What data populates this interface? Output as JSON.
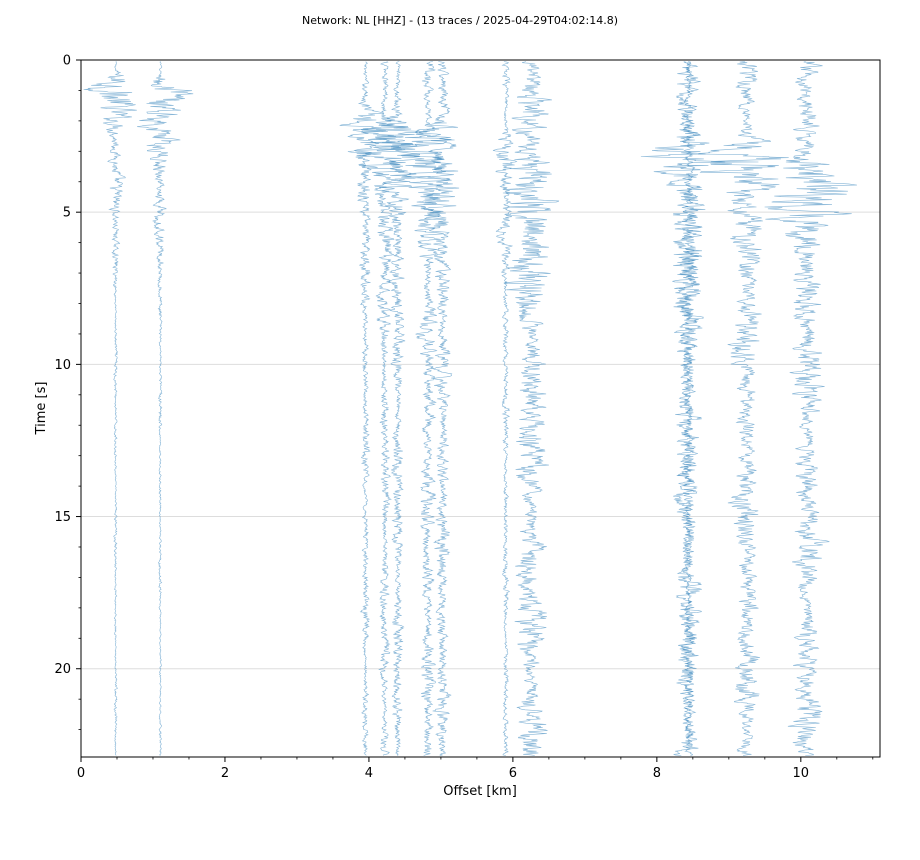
{
  "chart_data": {
    "type": "line",
    "title": "Network: NL [HHZ] - (13 traces / 2025-04-29T04:02:14.8)",
    "xlabel": "Offset [km]",
    "ylabel": "Time [s]",
    "xlim": [
      0,
      11.1
    ],
    "ylim": [
      22.9,
      0
    ],
    "y_inverted": true,
    "x_ticks": [
      0,
      2,
      4,
      6,
      8,
      10
    ],
    "y_ticks": [
      0,
      5,
      10,
      15,
      20
    ],
    "grid": "horizontal",
    "trace_color": "#1f77b4",
    "series": [
      {
        "offset": 0.48,
        "amplitude": 0.02,
        "burst_time": 0.9,
        "burst_amplitude": 0.42
      },
      {
        "offset": 1.1,
        "amplitude": 0.02,
        "burst_time": 1.1,
        "burst_amplitude": 0.52
      },
      {
        "offset": 3.95,
        "amplitude": 0.05,
        "burst_time": 2.0,
        "burst_amplitude": 0.3
      },
      {
        "offset": 4.22,
        "amplitude": 0.07,
        "burst_time": 2.4,
        "burst_amplitude": 0.55
      },
      {
        "offset": 4.4,
        "amplitude": 0.08,
        "burst_time": 2.4,
        "burst_amplitude": 0.5
      },
      {
        "offset": 4.82,
        "amplitude": 0.1,
        "burst_time": 2.6,
        "burst_amplitude": 0.45
      },
      {
        "offset": 5.02,
        "amplitude": 0.1,
        "burst_time": 2.4,
        "burst_amplitude": 0.4
      },
      {
        "offset": 5.9,
        "amplitude": 0.04,
        "burst_time": 2.8,
        "burst_amplitude": 0.2
      },
      {
        "offset": 6.25,
        "amplitude": 0.22,
        "burst_time": 3.4,
        "burst_amplitude": 0.5
      },
      {
        "offset": 8.42,
        "amplitude": 0.18,
        "burst_time": 3.0,
        "burst_amplitude": 0.4
      },
      {
        "offset": 8.45,
        "amplitude": 0.1,
        "burst_time": 5.0,
        "burst_amplitude": 0.3
      },
      {
        "offset": 9.25,
        "amplitude": 0.18,
        "burst_time": 3.0,
        "burst_amplitude": 0.45
      },
      {
        "offset": 10.08,
        "amplitude": 0.2,
        "burst_time": 3.5,
        "burst_amplitude": 0.55
      }
    ]
  }
}
